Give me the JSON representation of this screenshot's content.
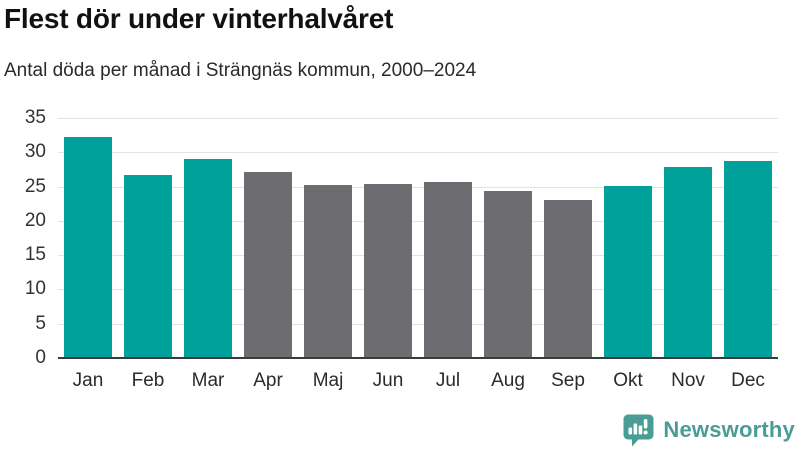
{
  "chart_data": {
    "type": "bar",
    "title": "Flest dör under vinterhalvåret",
    "subtitle": "Antal döda per månad i Strängnäs kommun, 2000–2024",
    "categories": [
      "Jan",
      "Feb",
      "Mar",
      "Apr",
      "Maj",
      "Jun",
      "Jul",
      "Aug",
      "Sep",
      "Okt",
      "Nov",
      "Dec"
    ],
    "values": [
      32.2,
      26.7,
      29.0,
      27.1,
      25.2,
      25.4,
      25.6,
      24.3,
      23.0,
      25.1,
      27.8,
      28.8
    ],
    "bar_color_keys": [
      "teal",
      "teal",
      "teal",
      "gray",
      "gray",
      "gray",
      "gray",
      "gray",
      "gray",
      "teal",
      "teal",
      "teal"
    ],
    "palette": {
      "teal": "#00a19a",
      "gray": "#6d6d71"
    },
    "xlabel": "",
    "ylabel": "",
    "ylim": [
      0,
      35
    ],
    "yticks": [
      0,
      5,
      10,
      15,
      20,
      25,
      30,
      35
    ],
    "grid": "horizontal",
    "legend": "none"
  },
  "footer": {
    "brand": "Newsworthy",
    "brand_color": "#4a9d96"
  },
  "colors": {
    "gridline": "#e3e3e3",
    "baseline": "#3b3b3b",
    "title": "#111111",
    "subtitle": "#2a2a2a",
    "tick_text": "#333333"
  }
}
